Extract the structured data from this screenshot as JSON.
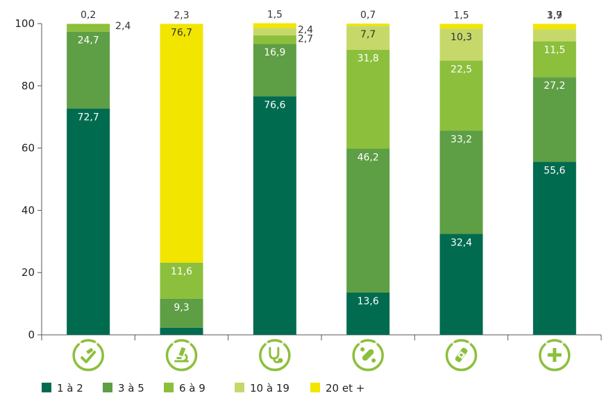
{
  "chart_data": {
    "type": "bar",
    "stacked": true,
    "title": "",
    "xlabel": "",
    "ylabel": "",
    "ylim": [
      0,
      100
    ],
    "yticks": [
      "0",
      "20",
      "40",
      "60",
      "80",
      "100"
    ],
    "categories": [
      "pharmacy-rx-icon",
      "laboratory-microscope-icon",
      "stethoscope-icon",
      "pills-icon",
      "bandage-icon",
      "plus-icon"
    ],
    "series": [
      {
        "name": "1 à 2",
        "color": "#006b4f",
        "values": [
          72.7,
          2.3,
          76.6,
          13.6,
          32.4,
          55.6
        ],
        "labels": [
          "72,7",
          "2,3",
          "76,6",
          "13,6",
          "32,4",
          "55,6"
        ]
      },
      {
        "name": "3 à 5",
        "color": "#5e9e44",
        "values": [
          24.7,
          9.3,
          16.9,
          46.2,
          33.2,
          27.2
        ],
        "labels": [
          "24,7",
          "9,3",
          "16,9",
          "46,2",
          "33,2",
          "27,2"
        ]
      },
      {
        "name": "6 à 9",
        "color": "#8cbf3c",
        "values": [
          2.4,
          11.6,
          2.7,
          31.8,
          22.5,
          11.5
        ],
        "labels": [
          "2,4",
          "11,6",
          "2,7",
          "31,8",
          "22,5",
          "11,5"
        ]
      },
      {
        "name": "10 à 19",
        "color": "#c6d86a",
        "values": [
          0.2,
          0,
          2.4,
          7.7,
          10.3,
          3.9
        ],
        "labels": [
          "0,2",
          "",
          "2,4",
          "7,7",
          "10,3",
          "3,9"
        ]
      },
      {
        "name": "20 et +",
        "color": "#f2e500",
        "values": [
          0,
          76.7,
          1.5,
          0.7,
          1.5,
          1.7
        ],
        "labels": [
          "",
          "76,7",
          "1,5",
          "0,7",
          "1,5",
          "1,7"
        ]
      }
    ],
    "grid": false,
    "legend_position": "bottom-left"
  }
}
